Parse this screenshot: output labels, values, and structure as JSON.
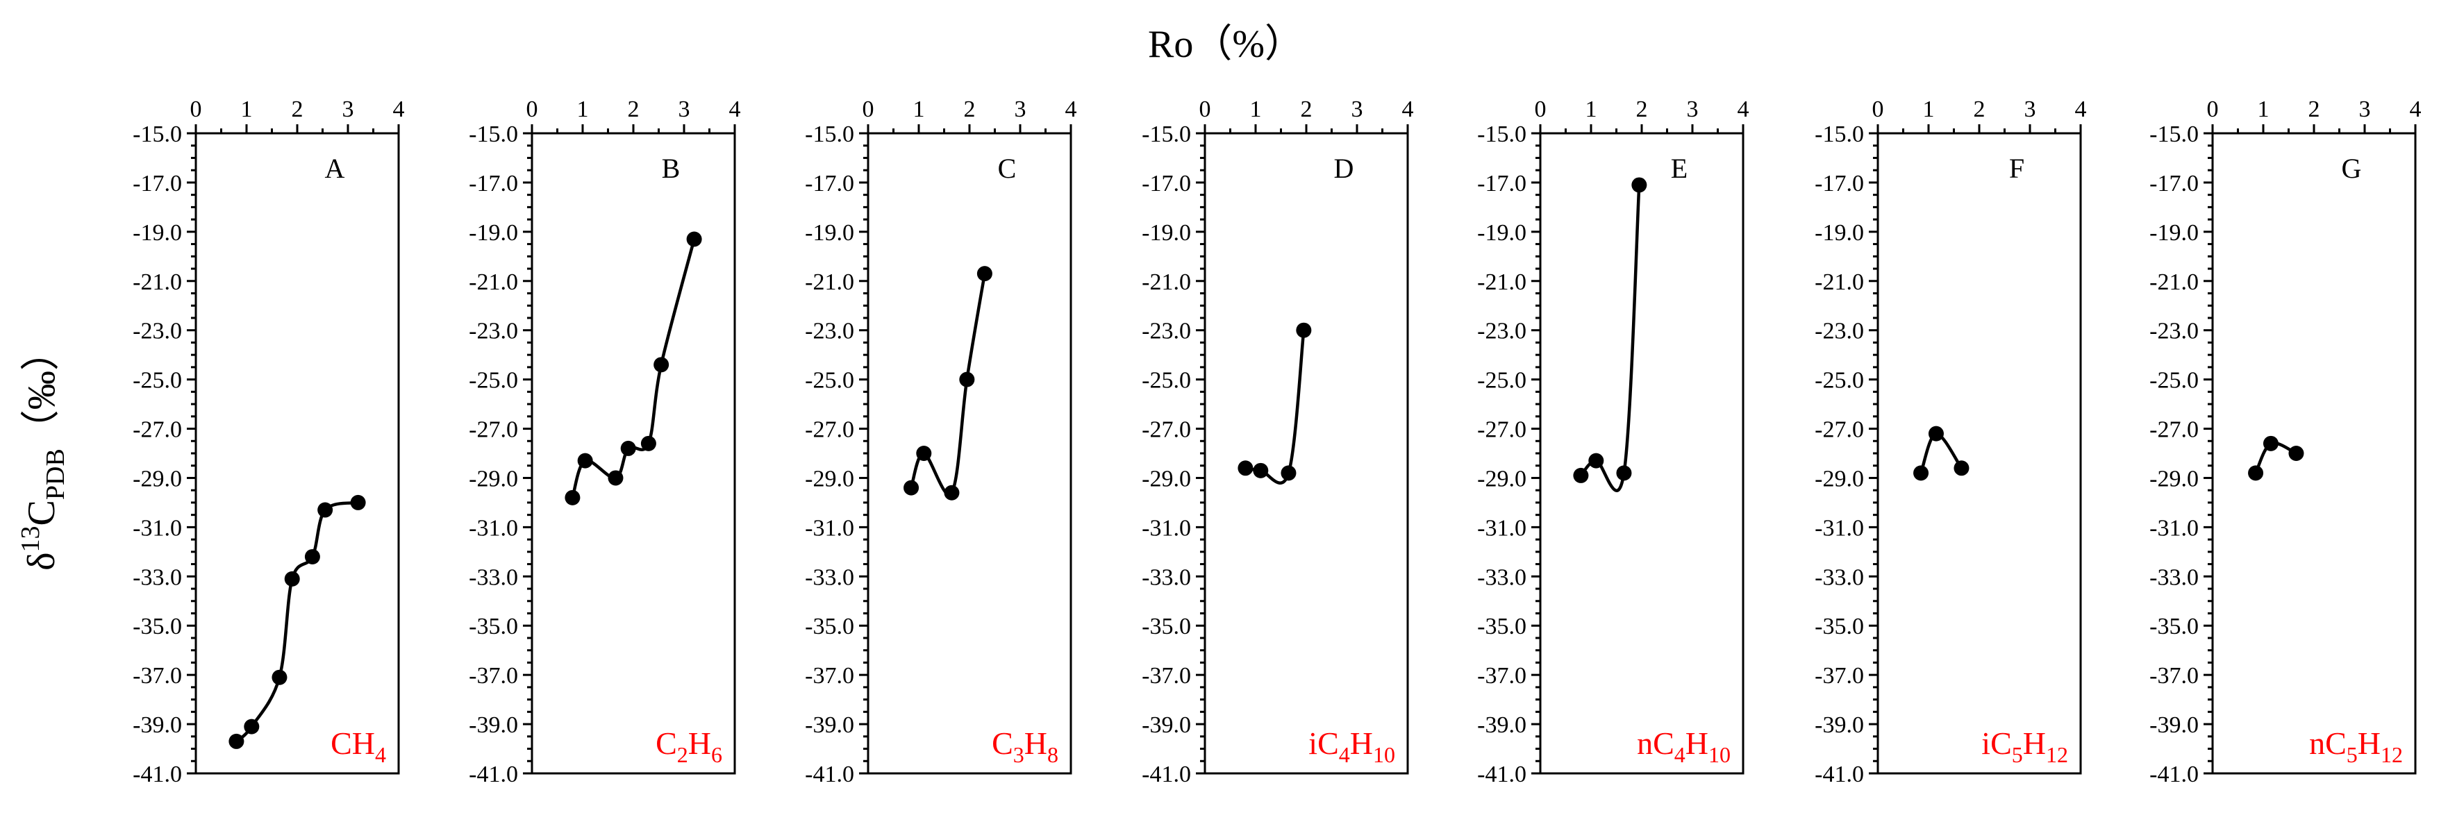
{
  "figure": {
    "x_axis_title": "Ro（%）",
    "y_axis_title": {
      "delta": "δ",
      "superscript": "13",
      "main": "C",
      "subscript": "PDB",
      "unit": "（‰）"
    }
  },
  "chart_data": [
    {
      "type": "line",
      "letter": "A",
      "label_parts": [
        {
          "t": "CH",
          "sub": false
        },
        {
          "t": "4",
          "sub": true
        }
      ],
      "xlim": [
        0,
        4
      ],
      "ylim": [
        -41,
        -15
      ],
      "xticks": [
        0,
        1,
        2,
        3,
        4
      ],
      "yticks": [
        -15,
        -17,
        -19,
        -21,
        -23,
        -25,
        -27,
        -29,
        -31,
        -33,
        -35,
        -37,
        -39,
        -41
      ],
      "ytick_labels": [
        "-15.0",
        "-17.0",
        "-19.0",
        "-21.0",
        "-23.0",
        "-25.0",
        "-27.0",
        "-29.0",
        "-31.0",
        "-33.0",
        "-35.0",
        "-37.0",
        "-39.0",
        "-41.0"
      ],
      "points": [
        {
          "x": 0.8,
          "y": -39.7
        },
        {
          "x": 1.1,
          "y": -39.1
        },
        {
          "x": 1.65,
          "y": -37.1
        },
        {
          "x": 1.9,
          "y": -33.1
        },
        {
          "x": 2.3,
          "y": -32.2
        },
        {
          "x": 2.55,
          "y": -30.3
        },
        {
          "x": 3.2,
          "y": -30.0
        }
      ]
    },
    {
      "type": "line",
      "letter": "B",
      "label_parts": [
        {
          "t": "C",
          "sub": false
        },
        {
          "t": "2",
          "sub": true
        },
        {
          "t": "H",
          "sub": false
        },
        {
          "t": "6",
          "sub": true
        }
      ],
      "xlim": [
        0,
        4
      ],
      "ylim": [
        -41,
        -15
      ],
      "xticks": [
        0,
        1,
        2,
        3,
        4
      ],
      "yticks": [
        -15,
        -17,
        -19,
        -21,
        -23,
        -25,
        -27,
        -29,
        -31,
        -33,
        -35,
        -37,
        -39,
        -41
      ],
      "ytick_labels": [
        "-15.0",
        "-17.0",
        "-19.0",
        "-21.0",
        "-23.0",
        "-25.0",
        "-27.0",
        "-29.0",
        "-31.0",
        "-33.0",
        "-35.0",
        "-37.0",
        "-39.0",
        "-41.0"
      ],
      "points": [
        {
          "x": 0.8,
          "y": -29.8
        },
        {
          "x": 1.05,
          "y": -28.3
        },
        {
          "x": 1.65,
          "y": -29.0
        },
        {
          "x": 1.9,
          "y": -27.8
        },
        {
          "x": 2.3,
          "y": -27.6
        },
        {
          "x": 2.55,
          "y": -24.4
        },
        {
          "x": 3.2,
          "y": -19.3
        }
      ]
    },
    {
      "type": "line",
      "letter": "C",
      "label_parts": [
        {
          "t": "C",
          "sub": false
        },
        {
          "t": "3",
          "sub": true
        },
        {
          "t": "H",
          "sub": false
        },
        {
          "t": "8",
          "sub": true
        }
      ],
      "xlim": [
        0,
        4
      ],
      "ylim": [
        -41,
        -15
      ],
      "xticks": [
        0,
        1,
        2,
        3,
        4
      ],
      "yticks": [
        -15,
        -17,
        -19,
        -21,
        -23,
        -25,
        -27,
        -29,
        -31,
        -33,
        -35,
        -37,
        -39,
        -41
      ],
      "ytick_labels": [
        "-15.0",
        "-17.0",
        "-19.0",
        "-21.0",
        "-23.0",
        "-25.0",
        "-27.0",
        "-29.0",
        "-31.0",
        "-33.0",
        "-35.0",
        "-37.0",
        "-39.0",
        "-41.0"
      ],
      "points": [
        {
          "x": 0.85,
          "y": -29.4
        },
        {
          "x": 1.1,
          "y": -28.0
        },
        {
          "x": 1.65,
          "y": -29.6
        },
        {
          "x": 1.95,
          "y": -25.0
        },
        {
          "x": 2.3,
          "y": -20.7
        }
      ]
    },
    {
      "type": "line",
      "letter": "D",
      "label_parts": [
        {
          "t": "iC",
          "sub": false
        },
        {
          "t": "4",
          "sub": true
        },
        {
          "t": "H",
          "sub": false
        },
        {
          "t": "10",
          "sub": true
        }
      ],
      "xlim": [
        0,
        4
      ],
      "ylim": [
        -41,
        -15
      ],
      "xticks": [
        0,
        1,
        2,
        3,
        4
      ],
      "yticks": [
        -15,
        -17,
        -19,
        -21,
        -23,
        -25,
        -27,
        -29,
        -31,
        -33,
        -35,
        -37,
        -39,
        -41
      ],
      "ytick_labels": [
        "-15.0",
        "-17.0",
        "-19.0",
        "-21.0",
        "-23.0",
        "-25.0",
        "-27.0",
        "-29.0",
        "-31.0",
        "-33.0",
        "-35.0",
        "-37.0",
        "-39.0",
        "-41.0"
      ],
      "points": [
        {
          "x": 0.8,
          "y": -28.6
        },
        {
          "x": 1.1,
          "y": -28.7
        },
        {
          "x": 1.65,
          "y": -28.8
        },
        {
          "x": 1.95,
          "y": -23.0
        }
      ]
    },
    {
      "type": "line",
      "letter": "E",
      "label_parts": [
        {
          "t": "nC",
          "sub": false
        },
        {
          "t": "4",
          "sub": true
        },
        {
          "t": "H",
          "sub": false
        },
        {
          "t": "10",
          "sub": true
        }
      ],
      "xlim": [
        0,
        4
      ],
      "ylim": [
        -41,
        -15
      ],
      "xticks": [
        0,
        1,
        2,
        3,
        4
      ],
      "yticks": [
        -15,
        -17,
        -19,
        -21,
        -23,
        -25,
        -27,
        -29,
        -31,
        -33,
        -35,
        -37,
        -39,
        -41
      ],
      "ytick_labels": [
        "-15.0",
        "-17.0",
        "-19.0",
        "-21.0",
        "-23.0",
        "-25.0",
        "-27.0",
        "-29.0",
        "-31.0",
        "-33.0",
        "-35.0",
        "-37.0",
        "-39.0",
        "-41.0"
      ],
      "points": [
        {
          "x": 0.8,
          "y": -28.9
        },
        {
          "x": 1.1,
          "y": -28.3
        },
        {
          "x": 1.65,
          "y": -28.8
        },
        {
          "x": 1.95,
          "y": -17.1
        }
      ]
    },
    {
      "type": "line",
      "letter": "F",
      "label_parts": [
        {
          "t": "iC",
          "sub": false
        },
        {
          "t": "5",
          "sub": true
        },
        {
          "t": "H",
          "sub": false
        },
        {
          "t": "12",
          "sub": true
        }
      ],
      "xlim": [
        0,
        4
      ],
      "ylim": [
        -41,
        -15
      ],
      "xticks": [
        0,
        1,
        2,
        3,
        4
      ],
      "yticks": [
        -15,
        -17,
        -19,
        -21,
        -23,
        -25,
        -27,
        -29,
        -31,
        -33,
        -35,
        -37,
        -39,
        -41
      ],
      "ytick_labels": [
        "-15.0",
        "-17.0",
        "-19.0",
        "-21.0",
        "-23.0",
        "-25.0",
        "-27.0",
        "-29.0",
        "-31.0",
        "-33.0",
        "-35.0",
        "-37.0",
        "-39.0",
        "-41.0"
      ],
      "points": [
        {
          "x": 0.85,
          "y": -28.8
        },
        {
          "x": 1.15,
          "y": -27.2
        },
        {
          "x": 1.65,
          "y": -28.6
        }
      ]
    },
    {
      "type": "line",
      "letter": "G",
      "label_parts": [
        {
          "t": "nC",
          "sub": false
        },
        {
          "t": "5",
          "sub": true
        },
        {
          "t": "H",
          "sub": false
        },
        {
          "t": "12",
          "sub": true
        }
      ],
      "xlim": [
        0,
        4
      ],
      "ylim": [
        -41,
        -15
      ],
      "xticks": [
        0,
        1,
        2,
        3,
        4
      ],
      "yticks": [
        -15,
        -17,
        -19,
        -21,
        -23,
        -25,
        -27,
        -29,
        -31,
        -33,
        -35,
        -37,
        -39,
        -41
      ],
      "ytick_labels": [
        "-15.0",
        "-17.0",
        "-19.0",
        "-21.0",
        "-23.0",
        "-25.0",
        "-27.0",
        "-29.0",
        "-31.0",
        "-33.0",
        "-35.0",
        "-37.0",
        "-39.0",
        "-41.0"
      ],
      "points": [
        {
          "x": 0.85,
          "y": -28.8
        },
        {
          "x": 1.15,
          "y": -27.6
        },
        {
          "x": 1.65,
          "y": -28.0
        }
      ]
    }
  ],
  "colors": {
    "axis": "#000000",
    "line": "#000000",
    "marker": "#000000",
    "compound_label": "#ff0000",
    "background": "#ffffff"
  }
}
